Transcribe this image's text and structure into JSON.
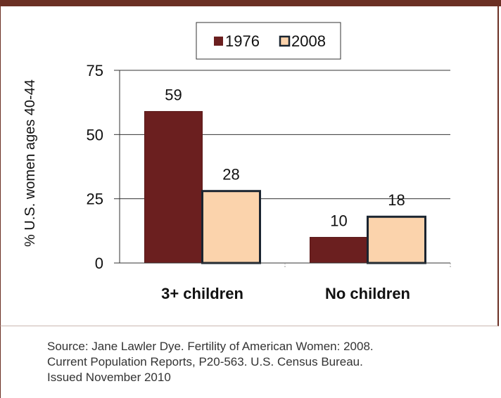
{
  "chart_data": {
    "type": "bar",
    "categories": [
      "3+ children",
      "No children"
    ],
    "series": [
      {
        "name": "1976",
        "values": [
          59,
          10
        ],
        "color": "#6b1f1f"
      },
      {
        "name": "2008",
        "values": [
          28,
          18
        ],
        "color": "#fbd3ac"
      }
    ],
    "ylabel": "% U.S. women ages 40-44",
    "ylim": [
      0,
      75
    ],
    "yticks": [
      "0",
      "25",
      "50",
      "75"
    ],
    "ytick_values": [
      0,
      25,
      50,
      75
    ],
    "grid": true,
    "legend": "top-center",
    "data_labels": true
  },
  "source": {
    "lines": [
      "Source: Jane Lawler Dye. Fertility of American Women: 2008.",
      "Current Population Reports, P20-563. U.S. Census Bureau.",
      "Issued November 2010"
    ]
  }
}
